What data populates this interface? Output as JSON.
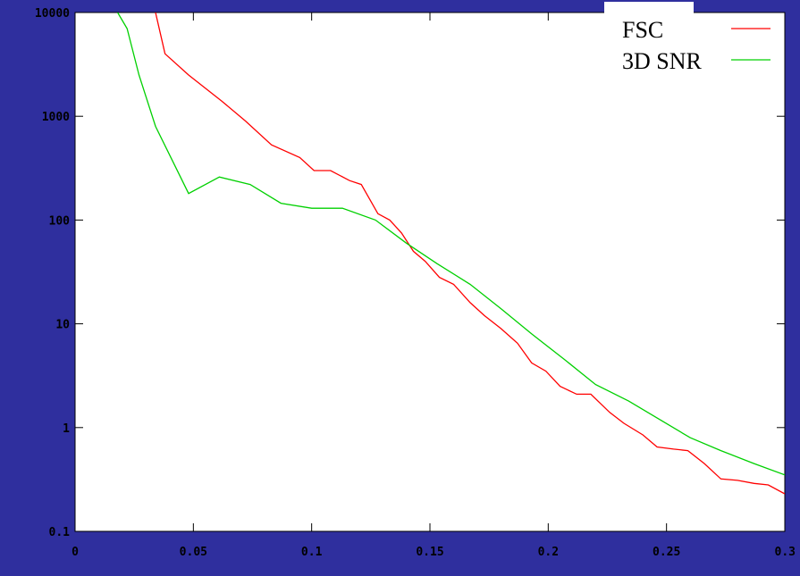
{
  "chart_data": {
    "type": "line",
    "title": "",
    "xlabel": "",
    "ylabel": "",
    "xlim": [
      0,
      0.3
    ],
    "ylim": [
      0.1,
      10000
    ],
    "yscale": "log",
    "grid": false,
    "legend_position": "top-right",
    "x_ticks": [
      "0",
      "0.05",
      "0.1",
      "0.15",
      "0.2",
      "0.25",
      "0.3"
    ],
    "y_ticks": [
      "0.1",
      "1",
      "10",
      "100",
      "1000",
      "10000"
    ],
    "series": [
      {
        "name": "FSC",
        "color": "#ff0000",
        "x": [
          0.034,
          0.038,
          0.048,
          0.062,
          0.072,
          0.083,
          0.095,
          0.101,
          0.108,
          0.116,
          0.121,
          0.128,
          0.133,
          0.138,
          0.143,
          0.148,
          0.154,
          0.16,
          0.167,
          0.173,
          0.18,
          0.187,
          0.193,
          0.199,
          0.205,
          0.212,
          0.218,
          0.226,
          0.232,
          0.24,
          0.246,
          0.253,
          0.259,
          0.266,
          0.273,
          0.28,
          0.287,
          0.293,
          0.3
        ],
        "y": [
          10000,
          4000,
          2500,
          1400,
          900,
          530,
          400,
          300,
          300,
          240,
          220,
          115,
          100,
          75,
          50,
          40,
          28,
          24,
          16,
          12,
          9,
          6.5,
          4.2,
          3.5,
          2.5,
          2.1,
          2.1,
          1.4,
          1.1,
          0.85,
          0.65,
          0.62,
          0.6,
          0.45,
          0.32,
          0.31,
          0.29,
          0.28,
          0.23
        ]
      },
      {
        "name": "3D SNR",
        "color": "#00d000",
        "x": [
          0.018,
          0.022,
          0.027,
          0.034,
          0.048,
          0.061,
          0.074,
          0.087,
          0.1,
          0.113,
          0.127,
          0.14,
          0.153,
          0.167,
          0.18,
          0.193,
          0.207,
          0.22,
          0.234,
          0.247,
          0.26,
          0.273,
          0.287,
          0.3
        ],
        "y": [
          10000,
          7000,
          2500,
          800,
          180,
          260,
          220,
          145,
          130,
          130,
          100,
          60,
          38,
          24,
          14,
          8,
          4.5,
          2.6,
          1.8,
          1.2,
          0.8,
          0.6,
          0.45,
          0.35
        ]
      }
    ]
  }
}
